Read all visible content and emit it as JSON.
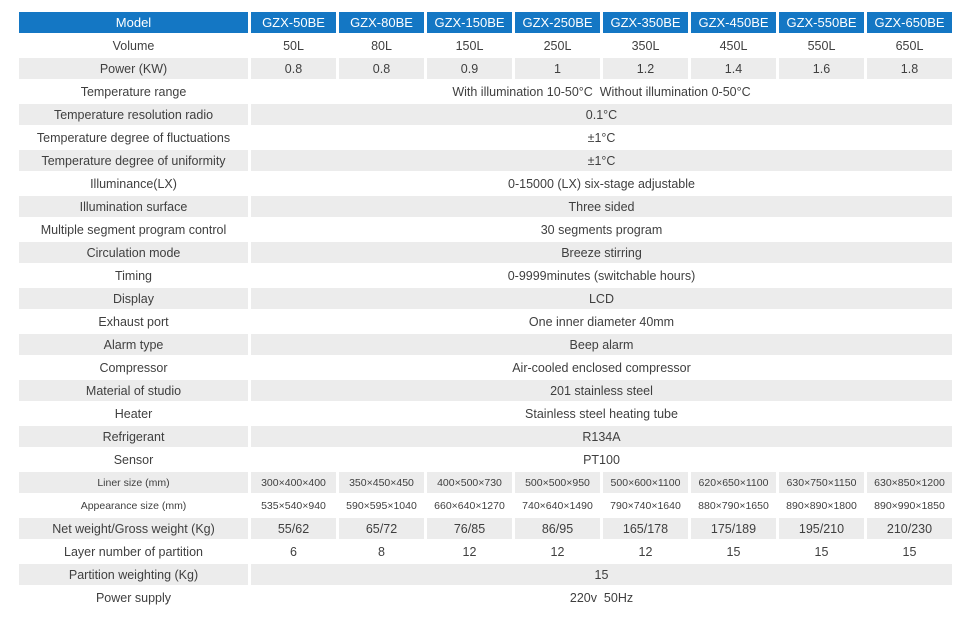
{
  "colors": {
    "header_bg": "#1477c4",
    "header_text": "#ffffff",
    "row_alt_bg": "#ececec",
    "row_bg": "#ffffff",
    "body_text": "#3f3f3f"
  },
  "table": {
    "header": [
      "Model",
      "GZX-50BE",
      "GZX-80BE",
      "GZX-150BE",
      "GZX-250BE",
      "GZX-350BE",
      "GZX-450BE",
      "GZX-550BE",
      "GZX-650BE"
    ],
    "rows": [
      {
        "label": "Volume",
        "values": [
          "50L",
          "80L",
          "150L",
          "250L",
          "350L",
          "450L",
          "550L",
          "650L"
        ]
      },
      {
        "label": "Power (KW)",
        "values": [
          "0.8",
          "0.8",
          "0.9",
          "1",
          "1.2",
          "1.4",
          "1.6",
          "1.8"
        ]
      },
      {
        "label": "Temperature range",
        "value": "With illumination 10-50°C  Without illumination 0-50°C"
      },
      {
        "label": "Temperature resolution radio",
        "value": "0.1°C"
      },
      {
        "label": "Temperature degree of fluctuations",
        "value": "±1°C"
      },
      {
        "label": "Temperature degree of uniformity",
        "value": "±1°C"
      },
      {
        "label": "Illuminance(LX)",
        "value": "0-15000 (LX) six-stage adjustable"
      },
      {
        "label": "Illumination surface",
        "value": "Three sided"
      },
      {
        "label": "Multiple segment program control",
        "value": "30 segments program"
      },
      {
        "label": "Circulation mode",
        "value": "Breeze stirring"
      },
      {
        "label": "Timing",
        "value": "0-9999minutes (switchable hours)"
      },
      {
        "label": "Display",
        "value": "LCD"
      },
      {
        "label": "Exhaust port",
        "value": "One inner diameter 40mm"
      },
      {
        "label": "Alarm type",
        "value": "Beep alarm"
      },
      {
        "label": "Compressor",
        "value": "Air-cooled enclosed compressor"
      },
      {
        "label": "Material of studio",
        "value": "201 stainless steel"
      },
      {
        "label": "Heater",
        "value": "Stainless steel heating tube"
      },
      {
        "label": "Refrigerant",
        "value": "R134A"
      },
      {
        "label": "Sensor",
        "value": "PT100"
      },
      {
        "label": "Liner size (mm)",
        "values": [
          "300×400×400",
          "350×450×450",
          "400×500×730",
          "500×500×950",
          "500×600×1100",
          "620×650×1100",
          "630×750×1150",
          "630×850×1200"
        ]
      },
      {
        "label": "Appearance size (mm)",
        "values": [
          "535×540×940",
          "590×595×1040",
          "660×640×1270",
          "740×640×1490",
          "790×740×1640",
          "880×790×1650",
          "890×890×1800",
          "890×990×1850"
        ]
      },
      {
        "label": "Net weight/Gross weight (Kg)",
        "values": [
          "55/62",
          "65/72",
          "76/85",
          "86/95",
          "165/178",
          "175/189",
          "195/210",
          "210/230"
        ]
      },
      {
        "label": "Layer number of partition",
        "values": [
          "6",
          "8",
          "12",
          "12",
          "12",
          "15",
          "15",
          "15"
        ]
      },
      {
        "label": "Partition weighting (Kg)",
        "value": "15"
      },
      {
        "label": "Power supply",
        "value": "220v  50Hz"
      }
    ]
  }
}
